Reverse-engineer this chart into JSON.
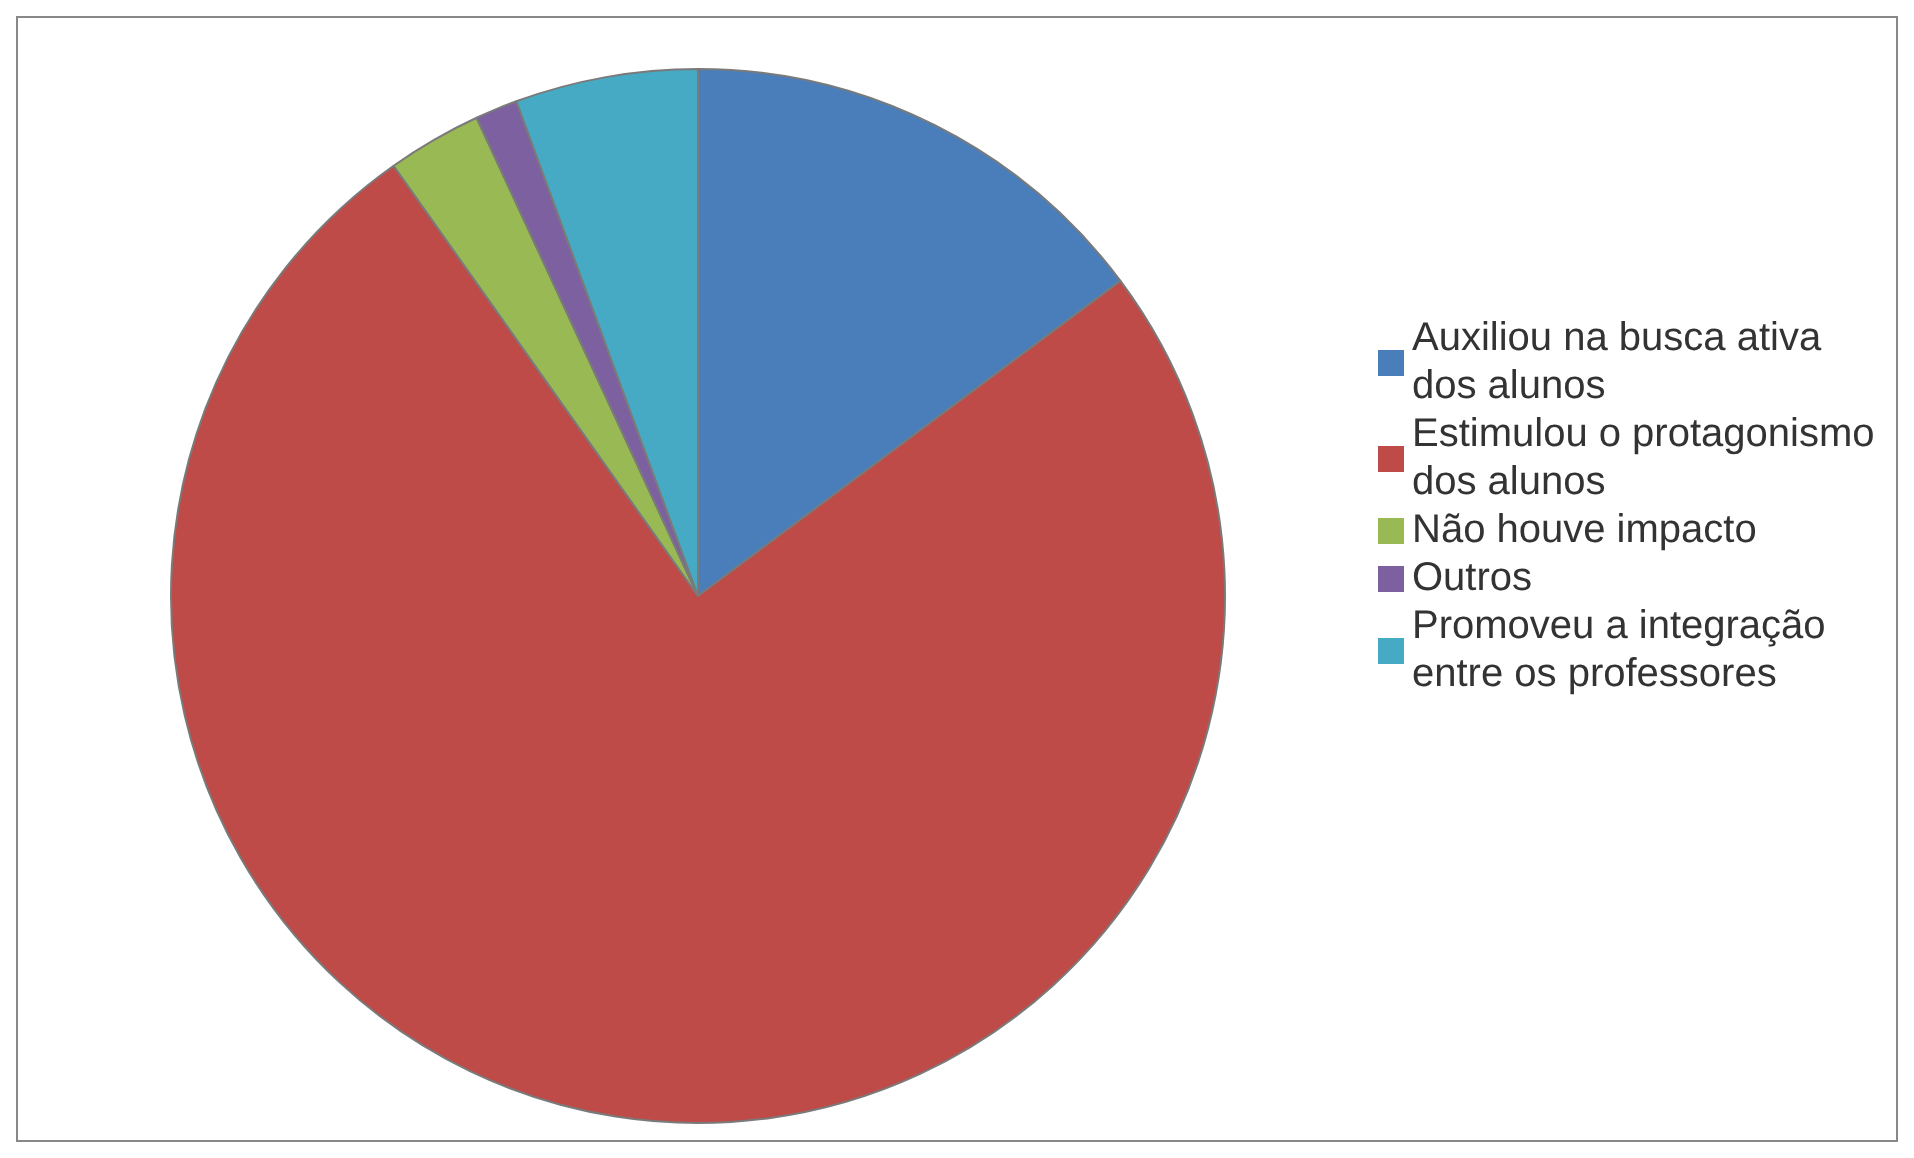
{
  "chart_data": {
    "type": "pie",
    "categories": [
      "Auxiliou na busca ativa dos alunos",
      "Estimulou o protagonismo dos alunos",
      "Não houve impacto",
      "Outros",
      "Promoveu a integração entre os professores"
    ],
    "values": [
      14.8,
      75.4,
      2.9,
      1.3,
      5.6
    ],
    "colors": [
      "#4a7ebb",
      "#be4b48",
      "#98b954",
      "#7d60a0",
      "#46aac5"
    ],
    "legend": "right"
  }
}
